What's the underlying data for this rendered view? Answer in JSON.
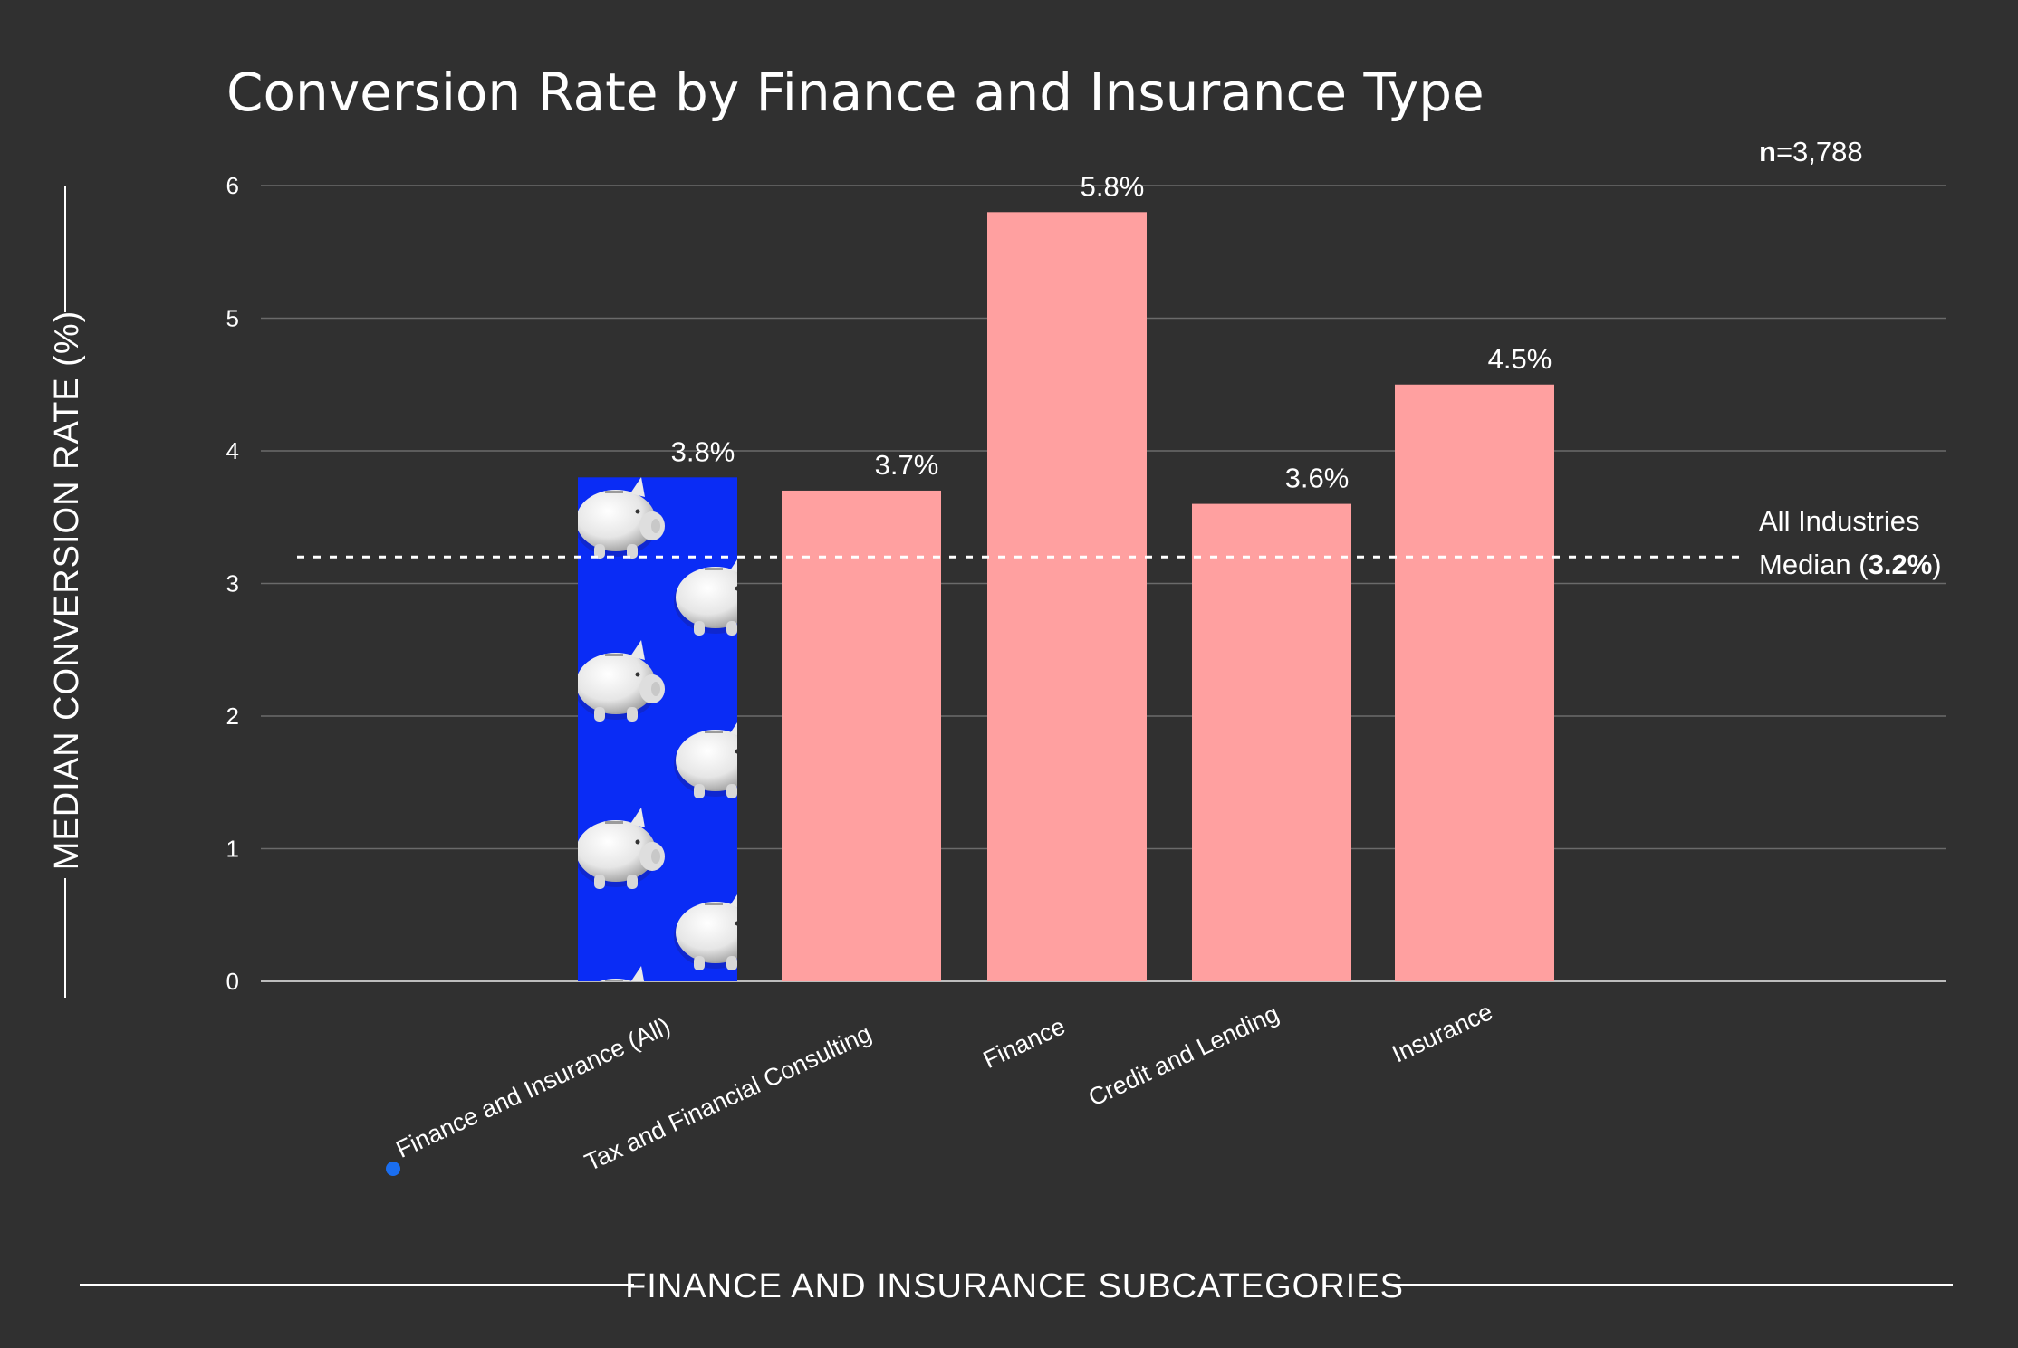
{
  "chart_data": {
    "type": "bar",
    "title": "Conversion Rate by Finance and Insurance Type",
    "sample_size": {
      "label": "n",
      "value_text": "=3,788"
    },
    "xlabel": "FINANCE AND INSURANCE SUBCATEGORIES",
    "ylabel": "MEDIAN CONVERSION RATE (%)",
    "ylim": [
      0,
      6
    ],
    "yticks": [
      "0",
      "1",
      "2",
      "3",
      "4",
      "5",
      "6"
    ],
    "grid": true,
    "categories": [
      "Finance and Insurance (All)",
      "Tax and Financial Consulting",
      "Finance",
      "Credit and Lending",
      "Insurance"
    ],
    "values": [
      3.8,
      3.7,
      5.8,
      3.6,
      4.5
    ],
    "value_labels": [
      "3.8%",
      "3.7%",
      "5.8%",
      "3.6%",
      "4.5%"
    ],
    "bar_colors": [
      "#0a2cf5",
      "#ffa0a0",
      "#ffa0a0",
      "#ffa0a0",
      "#ffa0a0"
    ],
    "highlight_bar_fill": "piggy-bank-pattern",
    "highlight_marker_color": "#1a6ef0",
    "reference_line": {
      "value": 3.2,
      "style": "dotted",
      "label_line1": "All Industries",
      "label_line2_prefix": "Median (",
      "label_line2_bold": "3.2%",
      "label_line2_suffix": ")"
    },
    "colors": {
      "background": "#303030",
      "text": "#ffffff",
      "grid": "#6a6a6a",
      "bar": "#ffa0a0",
      "highlight_bar": "#0a2cf5"
    }
  }
}
